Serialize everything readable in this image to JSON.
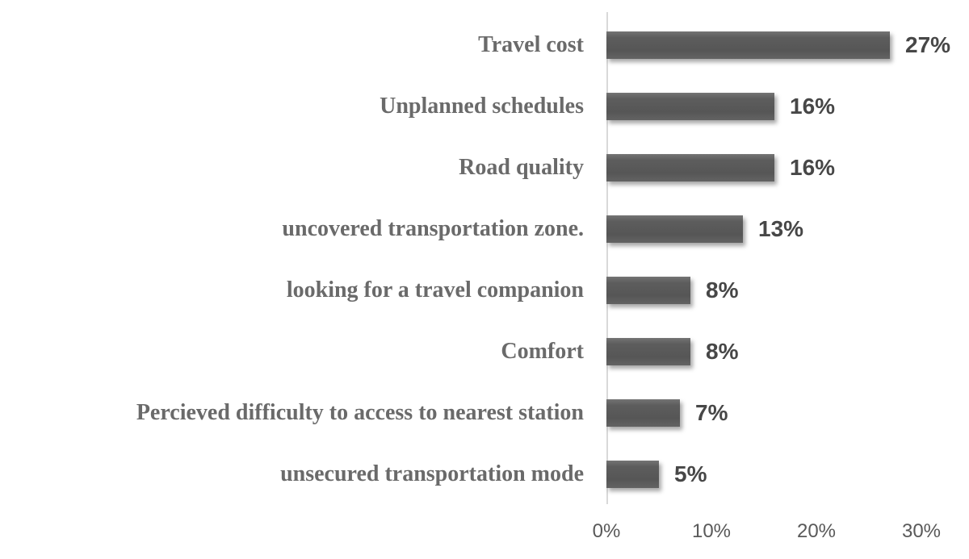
{
  "chart_data": {
    "type": "bar",
    "orientation": "horizontal",
    "title": "",
    "xlabel": "",
    "ylabel": "",
    "grid": false,
    "legend": "none",
    "categories": [
      "Travel cost",
      "Unplanned schedules",
      "Road quality",
      "uncovered transportation zone.",
      "looking for a travel companion",
      "Comfort",
      "Percieved difficulty to access to nearest station",
      "unsecured transportation mode"
    ],
    "values": [
      27,
      16,
      16,
      13,
      8,
      8,
      7,
      5
    ],
    "value_labels": [
      "27%",
      "16%",
      "16%",
      "13%",
      "8%",
      "8%",
      "7%",
      "5%"
    ],
    "x_ticks": [
      0,
      10,
      20,
      30
    ],
    "x_tick_labels": [
      "0%",
      "10%",
      "20%",
      "30%"
    ],
    "xlim": [
      0,
      30
    ],
    "colors": {
      "bar": "#595959",
      "category_label": "#6a6a6a",
      "value_label": "#474747",
      "axis_line": "#d9d9d9",
      "tick_label": "#595959"
    }
  }
}
